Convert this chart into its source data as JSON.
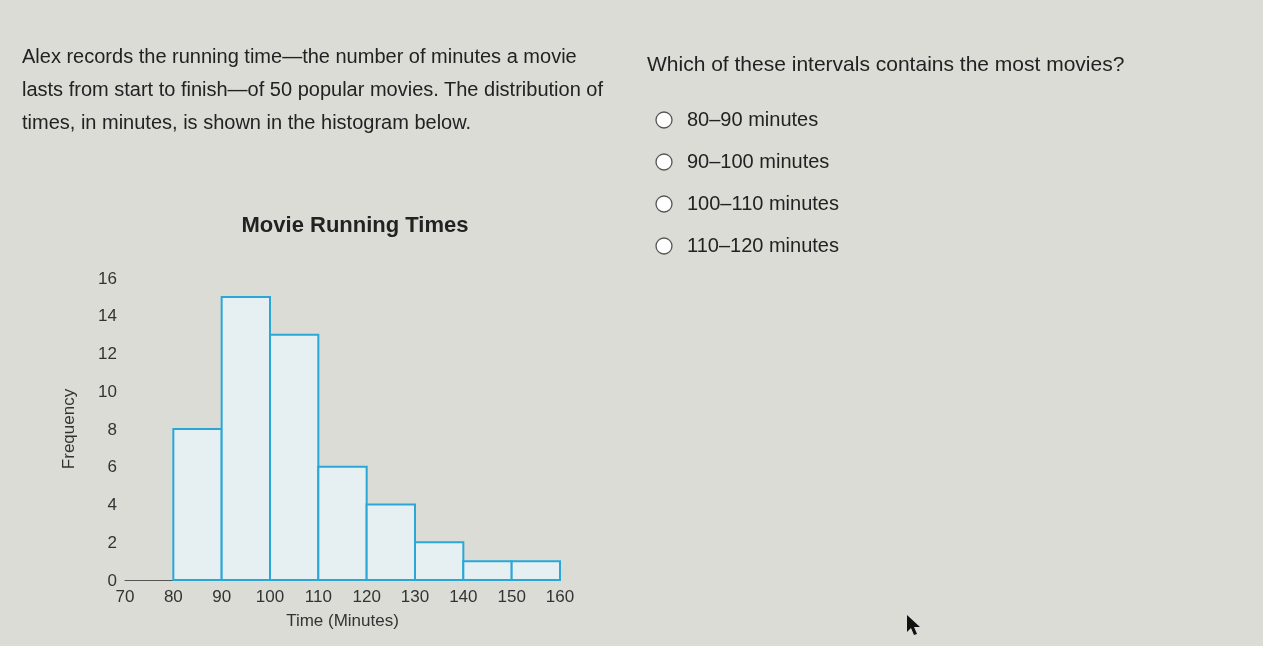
{
  "chart_data": {
    "type": "histogram",
    "title": "Movie Running Times",
    "xlabel": "Time (Minutes)",
    "ylabel": "Frequency",
    "bins": [
      80,
      90,
      100,
      110,
      120,
      130,
      140,
      150,
      160
    ],
    "values": [
      8,
      15,
      13,
      6,
      4,
      2,
      1,
      1
    ],
    "color": "#2aa7d6",
    "xlim": [
      70,
      160
    ],
    "xticks": [
      70,
      80,
      90,
      100,
      110,
      120,
      130,
      140,
      150,
      160
    ],
    "ylim": [
      0,
      16
    ],
    "yticks": [
      0,
      2,
      4,
      6,
      8,
      10,
      12,
      14,
      16
    ],
    "grid": false,
    "annotations": [
      "Alex records the running time—the number of minutes a movie lasts from start to finish—of 50 popular movies. The distribution of times, in minutes, is shown in the histogram below.",
      "Which of these intervals contains the most movies?",
      "80–90 minutes",
      "90–100 minutes",
      "100–110 minutes",
      "110–120 minutes"
    ]
  }
}
